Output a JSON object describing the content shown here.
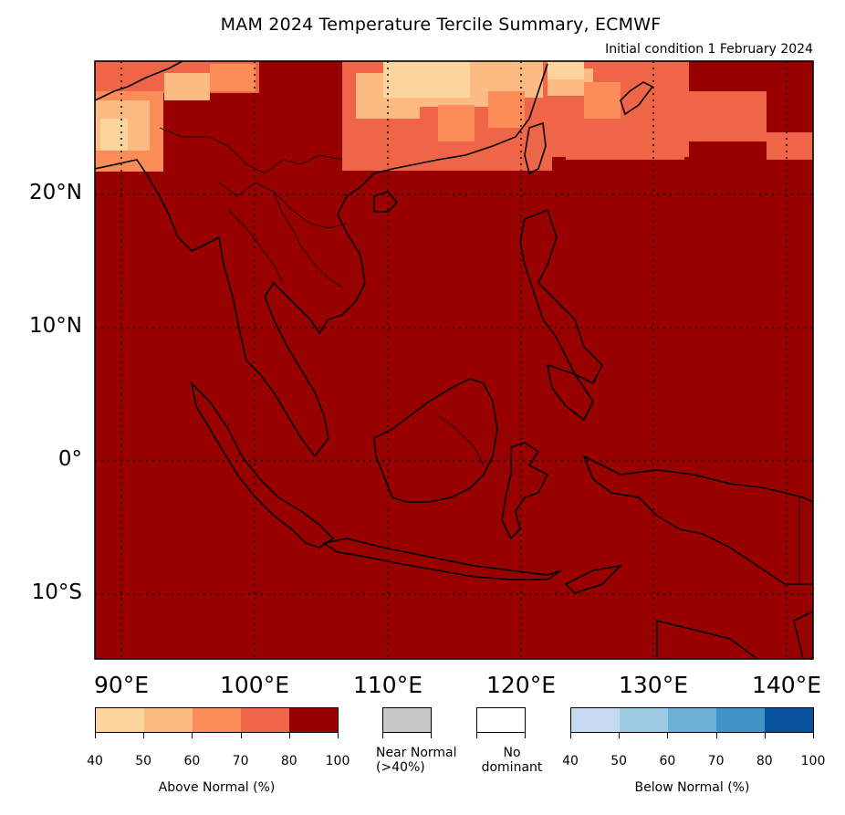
{
  "title": "MAM 2024 Temperature Tercile Summary, ECMWF",
  "subtitle": "Initial condition 1 February 2024",
  "lat_labels": [
    "20°N",
    "10°N",
    "0°",
    "10°S"
  ],
  "lon_labels": [
    "90°E",
    "100°E",
    "110°E",
    "120°E",
    "130°E",
    "140°E"
  ],
  "colors": {
    "above": [
      "#fdd49e",
      "#fdbb84",
      "#fc8d59",
      "#ef6548",
      "#990000"
    ],
    "below": [
      "#c6dbef",
      "#9ecae1",
      "#6baed6",
      "#4292c6",
      "#08519c"
    ],
    "near_normal": "#c8c8c8",
    "no_dominant": "#ffffff"
  },
  "legend": {
    "above_label": "Above Normal (%)",
    "below_label": "Below Normal (%)",
    "near_normal_line1": "Near Normal",
    "near_normal_line2": "(>40%)",
    "no_dominant_line1": "No",
    "no_dominant_line2": "dominant",
    "ticks": [
      "40",
      "50",
      "60",
      "70",
      "80",
      "100"
    ]
  }
}
